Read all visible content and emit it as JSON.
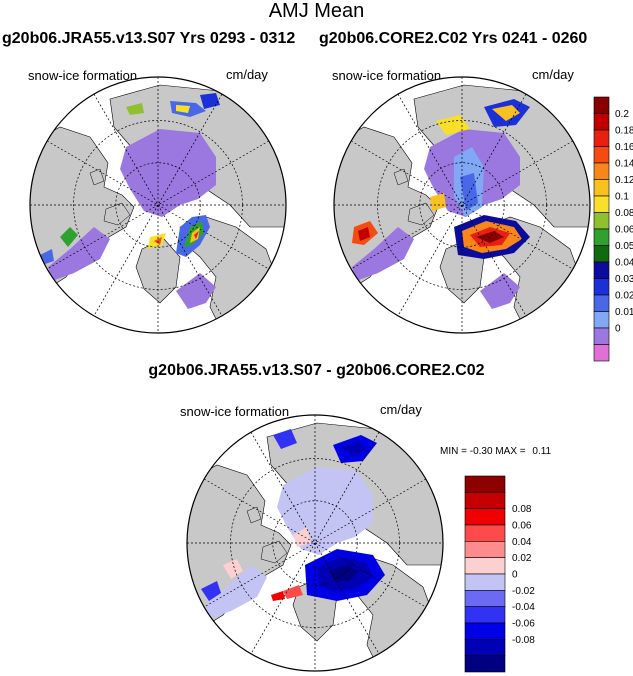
{
  "figure": {
    "title": "AMJ Mean",
    "top_left_title": "g20b06.JRA55.v13.S07  Yrs 0293 - 0312",
    "top_right_title": "g20b06.CORE2.C02  Yrs 0241 - 0260",
    "bottom_title": "g20b06.JRA55.v13.S07 - g20b06.CORE2.C02",
    "panel_left_label": "snow-ice formation",
    "panel_left_units": "cm/day",
    "panel_right_label": "snow-ice formation",
    "panel_right_units": "cm/day",
    "panel_bottom_label": "snow-ice formation",
    "panel_bottom_units": "cm/day",
    "diff_min_label": "MIN =",
    "diff_min_value": "-0.30",
    "diff_max_label": "MAX =",
    "diff_max_value": "0.11"
  },
  "colors": {
    "land": "#c8c8c8",
    "ocean": "#ffffff",
    "ice_zero": "#9b77e0",
    "ice_diff_zero": "#c4c4f4"
  },
  "chart_data": [
    {
      "type": "heatmap",
      "title": "snow-ice formation",
      "units": "cm/day",
      "projection": "north polar stereographic",
      "case": "g20b06.JRA55.v13.S07",
      "years": "0293 - 0312",
      "colorbar": {
        "levels": [
          "0.2",
          "0.18",
          "0.16",
          "0.14",
          "0.12",
          "0.1",
          "0.08",
          "0.06",
          "0.05",
          "0.04",
          "0.03",
          "0.02",
          "0.01",
          "0"
        ],
        "colors": [
          "#880000",
          "#c00000",
          "#e82010",
          "#f54a10",
          "#f8861a",
          "#f8c020",
          "#f8e028",
          "#90c030",
          "#30a030",
          "#106a10",
          "#0c0c9c",
          "#1c30d8",
          "#4868e8",
          "#80a8f4",
          "#9b77e0",
          "#e070d8"
        ]
      }
    },
    {
      "type": "heatmap",
      "title": "snow-ice formation",
      "units": "cm/day",
      "projection": "north polar stereographic",
      "case": "g20b06.CORE2.C02",
      "years": "0241 - 0260"
    },
    {
      "type": "heatmap",
      "title": "snow-ice formation",
      "units": "cm/day",
      "projection": "north polar stereographic",
      "case": "g20b06.JRA55.v13.S07 - g20b06.CORE2.C02",
      "min": -0.3,
      "max": 0.11,
      "colorbar": {
        "levels": [
          "0.08",
          "0.06",
          "0.04",
          "0.02",
          "0",
          "-0.02",
          "-0.04",
          "-0.06",
          "-0.08"
        ],
        "colors": [
          "#8c0000",
          "#c40000",
          "#f00000",
          "#ff4a4a",
          "#ff8c8c",
          "#fcd0d0",
          "#c4c4f4",
          "#6a6af2",
          "#3232f4",
          "#0000e6",
          "#0000b4",
          "#000080"
        ]
      }
    }
  ]
}
